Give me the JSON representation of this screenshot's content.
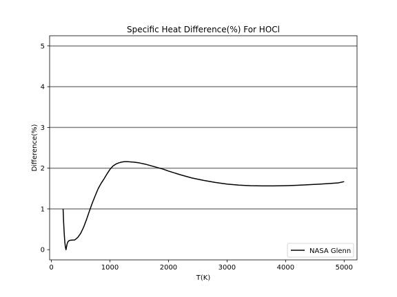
{
  "chart_data": {
    "type": "line",
    "title": "Specific Heat Difference(%) For HOCl",
    "xlabel": "T(K)",
    "ylabel": "Difference(%)",
    "xlim": [
      -30,
      5220
    ],
    "ylim": [
      -0.25,
      5.25
    ],
    "xticks": [
      0,
      1000,
      2000,
      3000,
      4000,
      5000
    ],
    "yticks": [
      0,
      1,
      2,
      3,
      4,
      5
    ],
    "hlines": [
      1,
      2,
      3,
      4,
      5
    ],
    "grid": false,
    "legend_position": "lower right",
    "series": [
      {
        "name": "NASA Glenn",
        "color": "#000000",
        "x": [
          200,
          210,
          220,
          230,
          240,
          250,
          260,
          270,
          285,
          300,
          320,
          350,
          400,
          450,
          500,
          550,
          600,
          650,
          700,
          750,
          800,
          850,
          900,
          950,
          1000,
          1050,
          1100,
          1150,
          1200,
          1250,
          1300,
          1350,
          1400,
          1500,
          1600,
          1700,
          1800,
          1900,
          2000,
          2200,
          2400,
          2600,
          2800,
          3000,
          3200,
          3400,
          3600,
          3800,
          4000,
          4200,
          4400,
          4600,
          4800,
          4900,
          5000
        ],
        "y": [
          1.0,
          0.65,
          0.38,
          0.18,
          0.06,
          0.0,
          0.08,
          0.15,
          0.2,
          0.22,
          0.23,
          0.235,
          0.24,
          0.3,
          0.4,
          0.55,
          0.74,
          0.95,
          1.15,
          1.33,
          1.5,
          1.63,
          1.74,
          1.86,
          1.97,
          2.05,
          2.1,
          2.13,
          2.15,
          2.16,
          2.16,
          2.155,
          2.15,
          2.13,
          2.1,
          2.06,
          2.02,
          1.98,
          1.93,
          1.84,
          1.76,
          1.7,
          1.65,
          1.61,
          1.585,
          1.57,
          1.565,
          1.565,
          1.57,
          1.58,
          1.595,
          1.61,
          1.63,
          1.64,
          1.67
        ]
      }
    ]
  }
}
